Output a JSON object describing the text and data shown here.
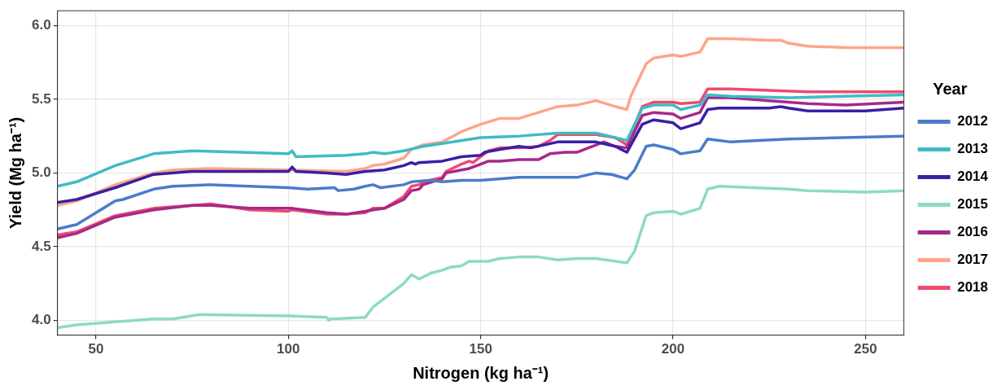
{
  "chart_data": {
    "type": "line",
    "xlabel": "Nitrogen (kg ha⁻¹)",
    "ylabel": "Yield (Mg ha⁻¹)",
    "legend_title": "Year",
    "xlim": [
      40,
      260
    ],
    "xticks": [
      50,
      100,
      150,
      200,
      250
    ],
    "ylim": [
      3.9,
      6.1
    ],
    "yticks": [
      {
        "value": 4,
        "label": "4.0"
      },
      {
        "value": 4.5,
        "label": "4.5"
      },
      {
        "value": 5,
        "label": "5.0"
      },
      {
        "value": 5.5,
        "label": "5.5"
      },
      {
        "value": 6,
        "label": "6.0"
      }
    ],
    "grid": true,
    "legend": "right",
    "marker": "none",
    "line_style": "solid",
    "series": [
      {
        "name": "2012",
        "color": "#4a7cc9",
        "x": [
          40,
          45,
          55,
          57,
          65,
          70,
          80,
          100,
          105,
          112,
          113,
          117,
          120,
          122,
          124,
          130,
          132,
          137,
          140,
          145,
          150,
          160,
          170,
          175,
          180,
          184,
          188,
          190,
          193,
          195,
          200,
          202,
          207,
          209,
          215,
          230,
          260
        ],
        "values": [
          4.62,
          4.65,
          4.81,
          4.82,
          4.89,
          4.91,
          4.92,
          4.9,
          4.89,
          4.9,
          4.88,
          4.89,
          4.91,
          4.92,
          4.9,
          4.92,
          4.94,
          4.95,
          4.94,
          4.95,
          4.95,
          4.97,
          4.97,
          4.97,
          5.0,
          4.99,
          4.96,
          5.02,
          5.18,
          5.19,
          5.16,
          5.13,
          5.15,
          5.23,
          5.21,
          5.23,
          5.25
        ]
      },
      {
        "name": "2013",
        "color": "#40bbc4",
        "x": [
          40,
          45,
          55,
          65,
          75,
          100,
          101,
          102,
          115,
          120,
          122,
          125,
          130,
          135,
          140,
          150,
          160,
          170,
          180,
          188,
          192,
          195,
          200,
          202,
          207,
          209,
          215,
          230,
          260
        ],
        "values": [
          4.91,
          4.94,
          5.05,
          5.13,
          5.15,
          5.13,
          5.15,
          5.11,
          5.12,
          5.13,
          5.14,
          5.13,
          5.15,
          5.18,
          5.2,
          5.24,
          5.25,
          5.27,
          5.27,
          5.22,
          5.44,
          5.46,
          5.46,
          5.43,
          5.46,
          5.53,
          5.52,
          5.51,
          5.53
        ]
      },
      {
        "name": "2014",
        "color": "#3a1fa6",
        "x": [
          40,
          45,
          55,
          65,
          75,
          100,
          101,
          102,
          110,
          115,
          120,
          125,
          130,
          132,
          133,
          134,
          140,
          145,
          150,
          151,
          155,
          160,
          163,
          170,
          180,
          185,
          188,
          192,
          195,
          200,
          202,
          207,
          209,
          212,
          225,
          228,
          230,
          235,
          250,
          260
        ],
        "values": [
          4.8,
          4.82,
          4.9,
          4.99,
          5.01,
          5.01,
          5.04,
          5.01,
          5.0,
          4.99,
          5.01,
          5.02,
          5.05,
          5.07,
          5.06,
          5.07,
          5.08,
          5.11,
          5.12,
          5.14,
          5.16,
          5.18,
          5.17,
          5.21,
          5.21,
          5.18,
          5.14,
          5.33,
          5.36,
          5.34,
          5.3,
          5.34,
          5.43,
          5.44,
          5.44,
          5.45,
          5.44,
          5.42,
          5.42,
          5.44
        ]
      },
      {
        "name": "2015",
        "color": "#8ddcbc",
        "x": [
          40,
          45,
          55,
          65,
          70,
          77,
          100,
          110,
          110.5,
          111,
          120,
          122,
          125,
          130,
          132,
          134,
          137,
          140,
          142,
          145,
          147,
          152,
          155,
          160,
          165,
          170,
          175,
          180,
          188,
          190,
          193,
          195,
          200,
          202,
          207,
          209,
          212,
          230,
          235,
          250,
          260
        ],
        "values": [
          3.95,
          3.97,
          3.99,
          4.01,
          4.01,
          4.04,
          4.03,
          4.02,
          4.0,
          4.01,
          4.02,
          4.09,
          4.15,
          4.25,
          4.31,
          4.28,
          4.32,
          4.34,
          4.36,
          4.37,
          4.4,
          4.4,
          4.42,
          4.43,
          4.43,
          4.41,
          4.42,
          4.42,
          4.39,
          4.47,
          4.71,
          4.73,
          4.74,
          4.72,
          4.76,
          4.89,
          4.91,
          4.89,
          4.88,
          4.87,
          4.88
        ]
      },
      {
        "name": "2016",
        "color": "#a8288a",
        "x": [
          40,
          45,
          55,
          65,
          75,
          80,
          90,
          100,
          101,
          110,
          115,
          120,
          122,
          125,
          130,
          132,
          134,
          135,
          140,
          141,
          145,
          147,
          150,
          152,
          155,
          160,
          165,
          168,
          172,
          175,
          178,
          182,
          185,
          188,
          192,
          195,
          200,
          202,
          207,
          209,
          215,
          225,
          230,
          235,
          245,
          260
        ],
        "values": [
          4.56,
          4.59,
          4.7,
          4.75,
          4.78,
          4.78,
          4.76,
          4.76,
          4.76,
          4.73,
          4.72,
          4.74,
          4.75,
          4.76,
          4.82,
          4.88,
          4.89,
          4.92,
          4.96,
          5.0,
          5.02,
          5.03,
          5.06,
          5.08,
          5.08,
          5.09,
          5.09,
          5.13,
          5.14,
          5.14,
          5.17,
          5.21,
          5.18,
          5.17,
          5.39,
          5.41,
          5.4,
          5.37,
          5.41,
          5.51,
          5.51,
          5.49,
          5.48,
          5.47,
          5.46,
          5.48
        ]
      },
      {
        "name": "2017",
        "color": "#fda58a",
        "x": [
          40,
          45,
          55,
          65,
          70,
          80,
          100,
          115,
          120,
          122,
          125,
          130,
          132,
          135,
          140,
          145,
          150,
          155,
          160,
          165,
          170,
          175,
          180,
          185,
          188,
          189,
          193,
          195,
          200,
          202,
          207,
          209,
          215,
          225,
          228,
          230,
          235,
          245,
          260
        ],
        "values": [
          4.78,
          4.81,
          4.92,
          5.0,
          5.02,
          5.03,
          5.02,
          5.01,
          5.03,
          5.05,
          5.06,
          5.1,
          5.16,
          5.19,
          5.21,
          5.28,
          5.33,
          5.37,
          5.37,
          5.41,
          5.45,
          5.46,
          5.49,
          5.45,
          5.43,
          5.52,
          5.74,
          5.78,
          5.8,
          5.79,
          5.82,
          5.91,
          5.91,
          5.9,
          5.9,
          5.88,
          5.86,
          5.85,
          5.85
        ]
      },
      {
        "name": "2018",
        "color": "#ee4b6e",
        "x": [
          40,
          45,
          55,
          65,
          75,
          80,
          90,
          100,
          101,
          110,
          115,
          120,
          122,
          125,
          130,
          132,
          134,
          135,
          140,
          141,
          145,
          147,
          148,
          150,
          152,
          155,
          160,
          165,
          168,
          170,
          180,
          185,
          188,
          192,
          195,
          200,
          202,
          207,
          209,
          215,
          225,
          235,
          260
        ],
        "values": [
          4.58,
          4.6,
          4.71,
          4.76,
          4.78,
          4.79,
          4.75,
          4.74,
          4.75,
          4.72,
          4.72,
          4.73,
          4.76,
          4.76,
          4.84,
          4.91,
          4.92,
          4.94,
          4.97,
          5.01,
          5.06,
          5.08,
          5.07,
          5.11,
          5.15,
          5.17,
          5.17,
          5.18,
          5.22,
          5.26,
          5.26,
          5.24,
          5.19,
          5.45,
          5.48,
          5.48,
          5.47,
          5.48,
          5.57,
          5.57,
          5.56,
          5.55,
          5.55
        ]
      }
    ]
  }
}
